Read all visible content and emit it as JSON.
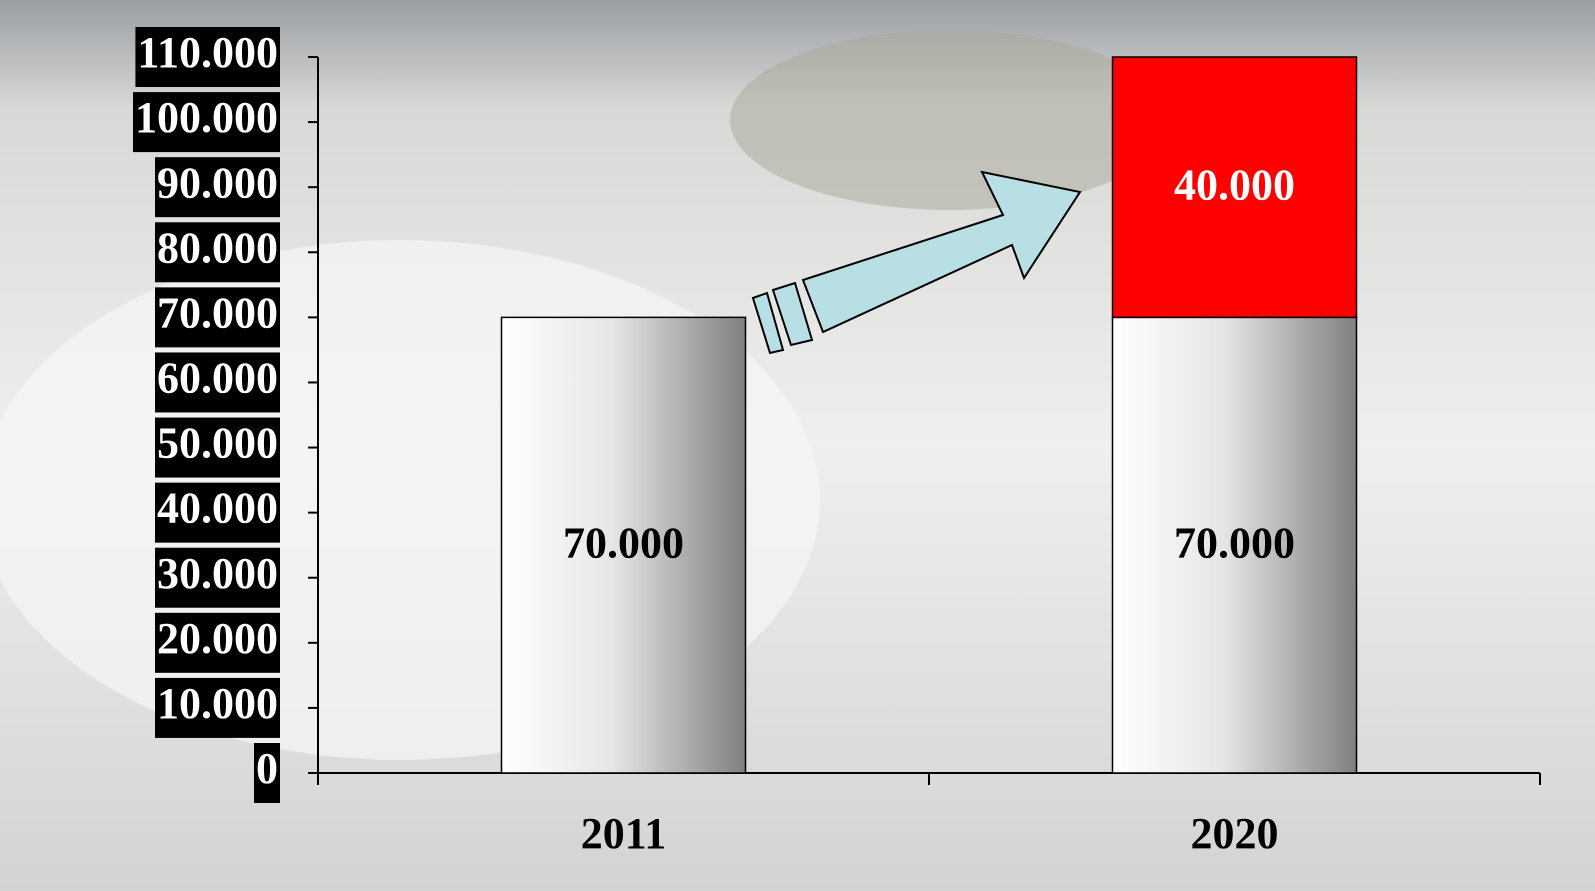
{
  "chart_data": {
    "type": "bar",
    "stacked": true,
    "categories": [
      "2011",
      "2020"
    ],
    "series": [
      {
        "color": "#808080",
        "values": [
          70000,
          70000
        ],
        "value_labels": [
          "70.000",
          "70.000"
        ]
      },
      {
        "color": "#ff0000",
        "values": [
          null,
          40000
        ],
        "value_labels": [
          null,
          "40.000"
        ]
      }
    ],
    "ylim": [
      0,
      110000
    ],
    "yticks": [
      {
        "value": 0,
        "label": "0"
      },
      {
        "value": 10000,
        "label": "10.000"
      },
      {
        "value": 20000,
        "label": "20.000"
      },
      {
        "value": 30000,
        "label": "30.000"
      },
      {
        "value": 40000,
        "label": "40.000"
      },
      {
        "value": 50000,
        "label": "50.000"
      },
      {
        "value": 60000,
        "label": "60.000"
      },
      {
        "value": 70000,
        "label": "70.000"
      },
      {
        "value": 80000,
        "label": "80.000"
      },
      {
        "value": 90000,
        "label": "90.000"
      },
      {
        "value": 100000,
        "label": "100.000"
      },
      {
        "value": 110000,
        "label": "110.000"
      }
    ],
    "grid": false
  }
}
